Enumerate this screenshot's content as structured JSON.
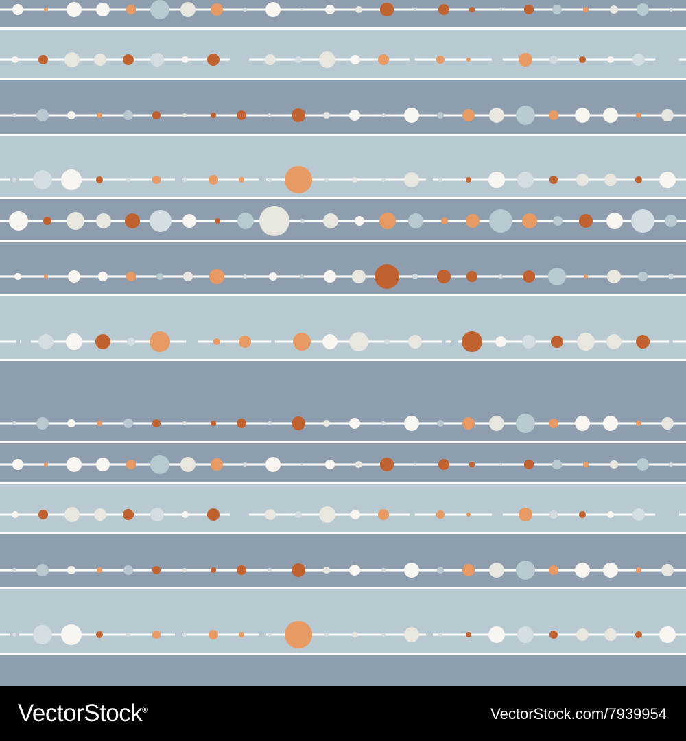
{
  "palette": {
    "band_dark": "#8e9eae",
    "band_light": "#b8c9d1",
    "line": "#ffffff",
    "dots": [
      "#f9f5f0",
      "#e7e6df",
      "#d3dde2",
      "#b8c9d1",
      "#e79a63",
      "#c0622f"
    ]
  },
  "footer": {
    "brand": "VectorStock",
    "registered_mark": "®",
    "image_id": "VectorStock.com/7939954"
  }
}
